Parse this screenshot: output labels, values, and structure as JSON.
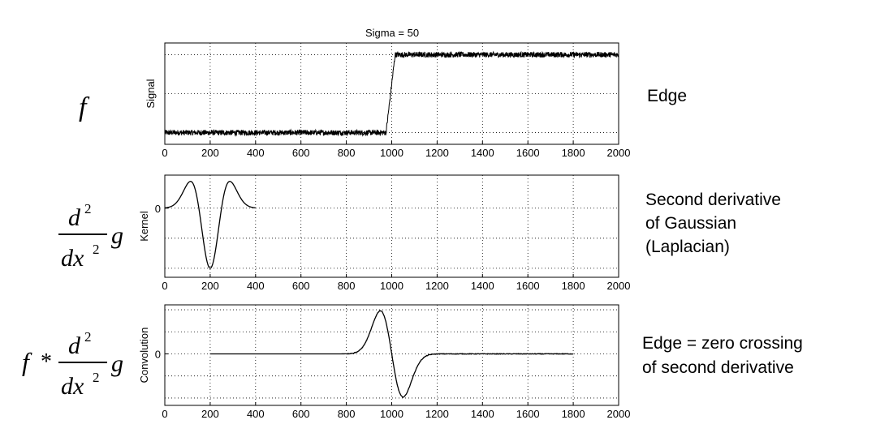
{
  "title": "Sigma = 50",
  "formulas": {
    "f": "f",
    "d2": "d",
    "exp2": "2",
    "dx2": "dx",
    "g": "g",
    "star": "*"
  },
  "annotations": {
    "edge": "Edge",
    "laplacian_line1": "Second derivative",
    "laplacian_line2": "of Gaussian",
    "laplacian_line3": "(Laplacian)",
    "zero_line1": "Edge = zero crossing",
    "zero_line2": "of second derivative"
  },
  "chart_data": [
    {
      "type": "line",
      "ylabel": "Signal",
      "xlim": [
        0,
        2000
      ],
      "ylim": [
        -0.15,
        1.15
      ],
      "grid": true,
      "xticks": [
        "0",
        "200",
        "400",
        "600",
        "800",
        "1000",
        "1200",
        "1400",
        "1600",
        "1800",
        "2000"
      ],
      "yticks": [],
      "description_values": {
        "x": [
          0,
          975,
          1000,
          1015,
          2000
        ],
        "y": [
          0,
          0,
          0.5,
          1,
          1
        ]
      }
    },
    {
      "type": "line",
      "ylabel": "Kernel",
      "xlim": [
        0,
        2000
      ],
      "ylim": [
        -1.15,
        0.55
      ],
      "grid": true,
      "xticks": [
        "0",
        "200",
        "400",
        "600",
        "800",
        "1000",
        "1200",
        "1400",
        "1600",
        "1800",
        "2000"
      ],
      "yticks": [
        "0"
      ],
      "kernel": {
        "x_start": 0,
        "x_end": 400,
        "center": 200,
        "sigma": 50,
        "min": -1,
        "lobe_peak": 0.45
      }
    },
    {
      "type": "line",
      "ylabel": "Convolution",
      "xlim": [
        0,
        2000
      ],
      "ylim": [
        -1.05,
        1.0
      ],
      "grid": true,
      "xticks": [
        "0",
        "200",
        "400",
        "600",
        "800",
        "1000",
        "1200",
        "1400",
        "1600",
        "1800",
        "2000"
      ],
      "yticks": [
        "0"
      ],
      "convolution": {
        "x_start": 200,
        "x_end": 1800,
        "peak_x": 945,
        "peak": 0.85,
        "trough_x": 1050,
        "trough": -0.95
      }
    }
  ]
}
